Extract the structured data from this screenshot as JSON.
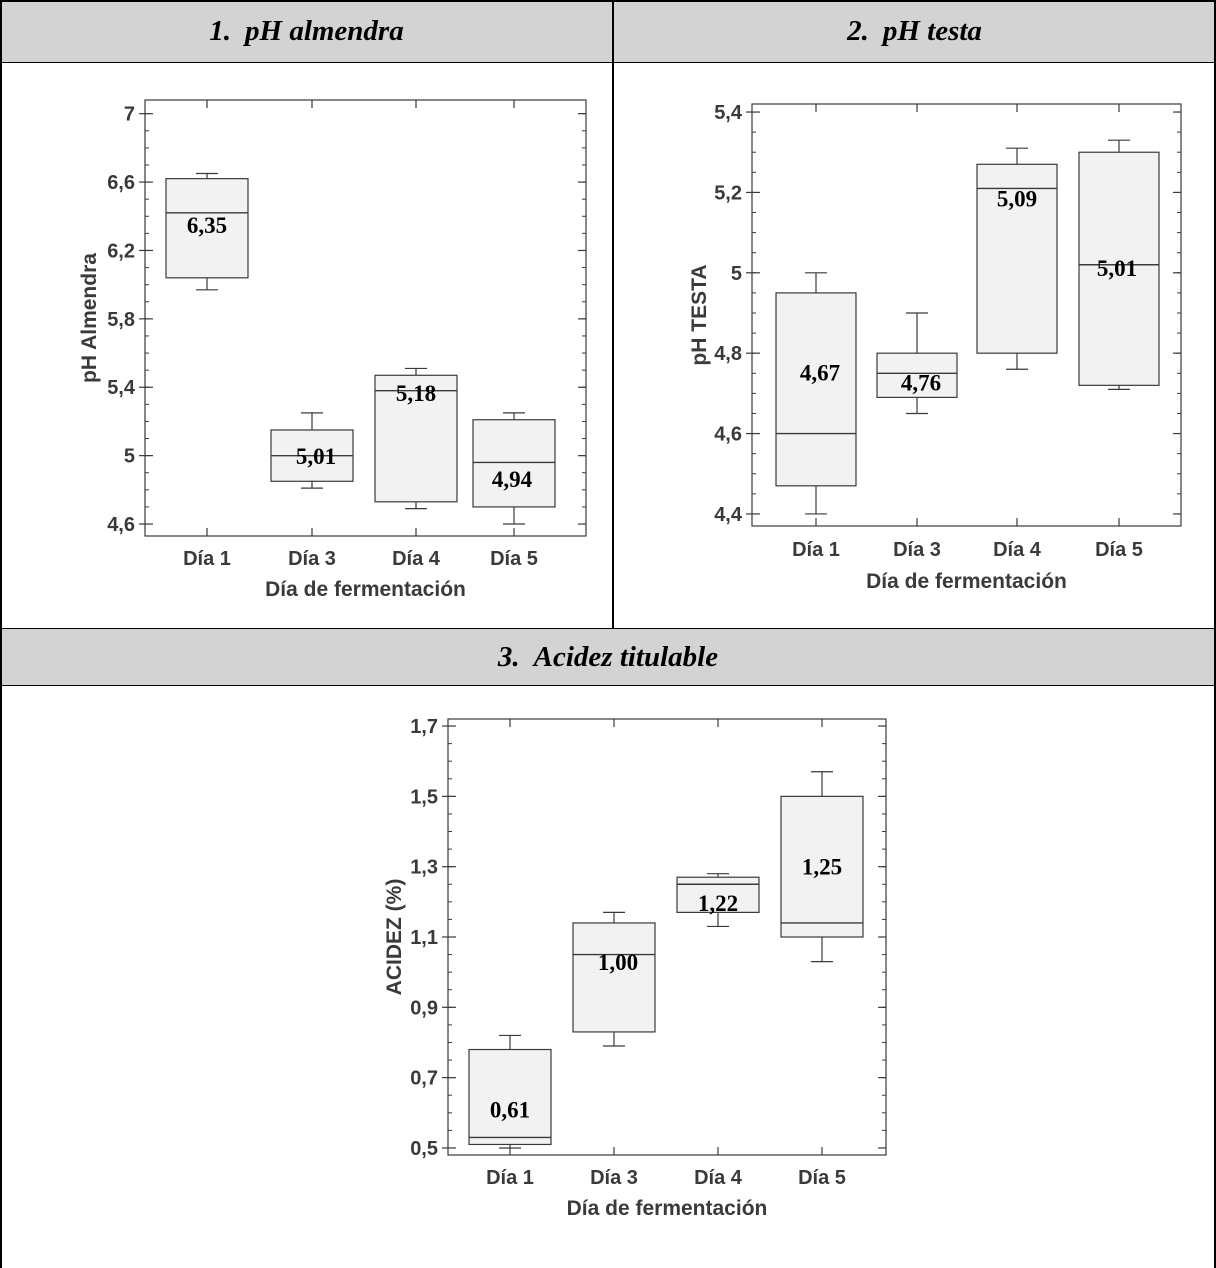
{
  "panels": [
    {
      "number": "1.",
      "title": "pH almendra"
    },
    {
      "number": "2.",
      "title": "pH testa"
    },
    {
      "number": "3.",
      "title": "Acidez titulable"
    }
  ],
  "chart_data": [
    {
      "type": "box",
      "xlabel": "Día de fermentación",
      "ylabel": "pH Almendra",
      "ylim": [
        4.53,
        7.08
      ],
      "yticks": [
        "7",
        "6,6",
        "6,2",
        "5,8",
        "5,4",
        "5",
        "4,6"
      ],
      "ytick_values": [
        7,
        6.6,
        6.2,
        5.8,
        5.4,
        5.0,
        4.6
      ],
      "categories": [
        "Día 1",
        "Día 3",
        "Día 4",
        "Día 5"
      ],
      "boxes": [
        {
          "min": 5.97,
          "q1": 6.04,
          "median": 6.42,
          "q3": 6.62,
          "max": 6.65,
          "mean_label": "6,35",
          "mean": 6.35
        },
        {
          "min": 4.81,
          "q1": 4.85,
          "median": 5.0,
          "q3": 5.15,
          "max": 5.25,
          "mean_label": "5,01",
          "mean": 5.01
        },
        {
          "min": 4.69,
          "q1": 4.73,
          "median": 5.38,
          "q3": 5.47,
          "max": 5.51,
          "mean_label": "5,18",
          "mean": 5.18
        },
        {
          "min": 4.6,
          "q1": 4.7,
          "median": 4.96,
          "q3": 5.21,
          "max": 5.25,
          "mean_label": "4,94",
          "mean": 4.94
        }
      ],
      "grid": false
    },
    {
      "type": "box",
      "xlabel": "Día de fermentación",
      "ylabel": "pH TESTA",
      "ylim": [
        4.37,
        5.42
      ],
      "yticks": [
        "5,4",
        "5,2",
        "5",
        "4,8",
        "4,6",
        "4,4"
      ],
      "ytick_values": [
        5.4,
        5.2,
        5.0,
        4.8,
        4.6,
        4.4
      ],
      "categories": [
        "Día 1",
        "Día 3",
        "Día 4",
        "Día 5"
      ],
      "boxes": [
        {
          "min": 4.4,
          "q1": 4.47,
          "median": 4.6,
          "q3": 4.95,
          "max": 5.0,
          "mean_label": "4,67",
          "mean": 4.67
        },
        {
          "min": 4.65,
          "q1": 4.69,
          "median": 4.75,
          "q3": 4.8,
          "max": 4.9,
          "mean_label": "4,76",
          "mean": 4.76
        },
        {
          "min": 4.76,
          "q1": 4.8,
          "median": 5.21,
          "q3": 5.27,
          "max": 5.31,
          "mean_label": "5,09",
          "mean": 5.09
        },
        {
          "min": 4.71,
          "q1": 4.72,
          "median": 5.02,
          "q3": 5.3,
          "max": 5.33,
          "mean_label": "5,01",
          "mean": 5.01
        }
      ],
      "grid": false
    },
    {
      "type": "box",
      "xlabel": "Día de fermentación",
      "ylabel": "ACIDEZ (%)",
      "ylim": [
        0.48,
        1.72
      ],
      "yticks": [
        "1,7",
        "1,5",
        "1,3",
        "1,1",
        "0,9",
        "0,7",
        "0,5"
      ],
      "ytick_values": [
        1.7,
        1.5,
        1.3,
        1.1,
        0.9,
        0.7,
        0.5
      ],
      "categories": [
        "Día 1",
        "Día 3",
        "Día 4",
        "Día 5"
      ],
      "boxes": [
        {
          "min": 0.5,
          "q1": 0.51,
          "median": 0.53,
          "q3": 0.78,
          "max": 0.82,
          "mean_label": "0,61",
          "mean": 0.61
        },
        {
          "min": 0.79,
          "q1": 0.83,
          "median": 1.05,
          "q3": 1.14,
          "max": 1.17,
          "mean_label": "1,00",
          "mean": 1.0
        },
        {
          "min": 1.13,
          "q1": 1.17,
          "median": 1.25,
          "q3": 1.27,
          "max": 1.28,
          "mean_label": "1,22",
          "mean": 1.22
        },
        {
          "min": 1.03,
          "q1": 1.1,
          "median": 1.14,
          "q3": 1.5,
          "max": 1.57,
          "mean_label": "1,25",
          "mean": 1.25
        }
      ],
      "grid": false
    }
  ],
  "colors": {
    "header_bg": "#d3d3d3",
    "box_fill": "#f2f2f2",
    "stroke": "#3a3a3a"
  }
}
